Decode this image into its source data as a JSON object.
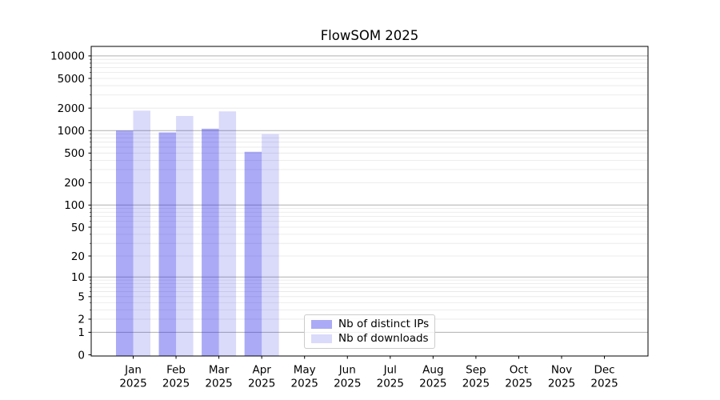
{
  "title": "FlowSOM 2025",
  "chart_data": {
    "type": "bar",
    "title": "FlowSOM 2025",
    "categories": [
      "Jan",
      "Feb",
      "Mar",
      "Apr",
      "May",
      "Jun",
      "Jul",
      "Aug",
      "Sep",
      "Oct",
      "Nov",
      "Dec"
    ],
    "year_label": "2025",
    "series": [
      {
        "name": "Nb of distinct IPs",
        "color": "#2020e8",
        "opacity": 0.38,
        "values": [
          1000,
          945,
          1060,
          520,
          null,
          null,
          null,
          null,
          null,
          null,
          null,
          null
        ]
      },
      {
        "name": "Nb of downloads",
        "color": "#2020e8",
        "opacity": 0.165,
        "values": [
          1850,
          1570,
          1810,
          895,
          null,
          null,
          null,
          null,
          null,
          null,
          null,
          null
        ]
      }
    ],
    "yscale": "log10(value+1)",
    "yticks": [
      0,
      1,
      2,
      5,
      10,
      20,
      50,
      100,
      200,
      500,
      1000,
      2000,
      5000,
      10000
    ],
    "ylim": [
      0,
      13000
    ],
    "grid": {
      "on": true,
      "major_color": "#b0b0b0",
      "minor_color": "#e7e7e7"
    },
    "legend_position": "lower center",
    "xlabel": "",
    "ylabel": ""
  }
}
